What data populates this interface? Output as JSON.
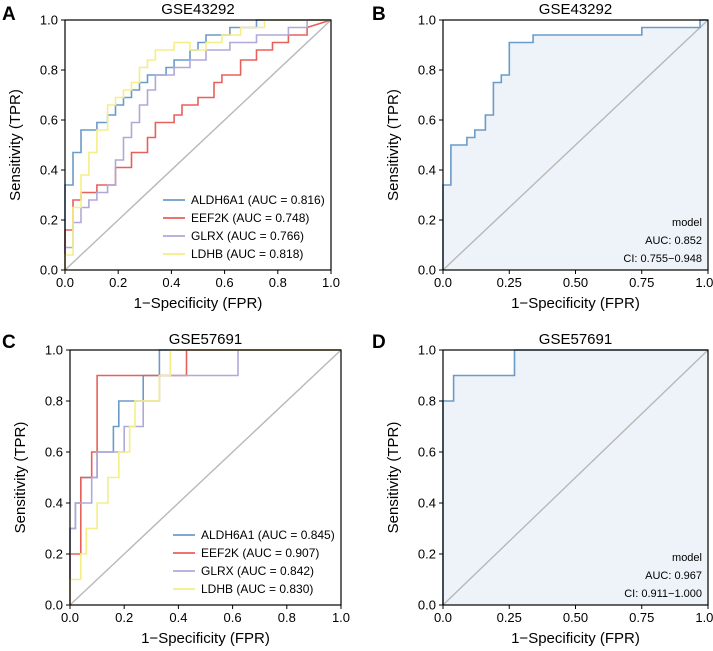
{
  "colors": {
    "ALDH6A1": "#6b9bc8",
    "EEF2K": "#e8605a",
    "GLRX": "#b0a8d8",
    "LDHB": "#f5ee86",
    "model_line": "#6b9bc8",
    "model_fill": "#eef3f9",
    "diagonal": "#b8b8b8"
  },
  "chart_data": [
    {
      "panel_label": "A",
      "type": "line",
      "title": "GSE43292",
      "xlabel": "1−Specificity (FPR)",
      "ylabel": "Sensitivity (TPR)",
      "xlim": [
        0,
        1
      ],
      "ylim": [
        0,
        1
      ],
      "xticks": [
        "0.0",
        "0.2",
        "0.4",
        "0.6",
        "0.8",
        "1.0"
      ],
      "yticks": [
        "0.0",
        "0.2",
        "0.4",
        "0.6",
        "0.8",
        "1.0"
      ],
      "legend_position": "bottom-right",
      "series": [
        {
          "name": "ALDH6A1",
          "label": "ALDH6A1 (AUC = 0.816)",
          "x": [
            0,
            0,
            0.03,
            0.03,
            0.06,
            0.06,
            0.12,
            0.12,
            0.16,
            0.16,
            0.19,
            0.19,
            0.22,
            0.22,
            0.25,
            0.25,
            0.28,
            0.28,
            0.31,
            0.31,
            0.38,
            0.38,
            0.41,
            0.41,
            0.47,
            0.47,
            0.5,
            0.5,
            0.53,
            0.53,
            0.62,
            0.62,
            0.72,
            0.72,
            0.81,
            0.81,
            1.0
          ],
          "y": [
            0,
            0.34,
            0.34,
            0.47,
            0.47,
            0.56,
            0.56,
            0.59,
            0.59,
            0.62,
            0.62,
            0.66,
            0.66,
            0.69,
            0.69,
            0.72,
            0.72,
            0.75,
            0.75,
            0.78,
            0.78,
            0.81,
            0.81,
            0.84,
            0.84,
            0.88,
            0.88,
            0.91,
            0.91,
            0.94,
            0.94,
            0.97,
            0.97,
            1.0,
            1.0,
            1.0,
            1.0
          ]
        },
        {
          "name": "EEF2K",
          "label": "EEF2K (AUC = 0.748)",
          "x": [
            0,
            0,
            0.03,
            0.03,
            0.06,
            0.06,
            0.12,
            0.12,
            0.19,
            0.19,
            0.25,
            0.25,
            0.31,
            0.31,
            0.34,
            0.34,
            0.41,
            0.41,
            0.44,
            0.44,
            0.5,
            0.5,
            0.56,
            0.56,
            0.59,
            0.59,
            0.66,
            0.66,
            0.72,
            0.72,
            0.78,
            0.78,
            0.84,
            0.84,
            0.91,
            0.91,
            1.0
          ],
          "y": [
            0,
            0.16,
            0.16,
            0.28,
            0.28,
            0.31,
            0.31,
            0.34,
            0.34,
            0.41,
            0.41,
            0.47,
            0.47,
            0.53,
            0.53,
            0.59,
            0.59,
            0.62,
            0.62,
            0.66,
            0.66,
            0.69,
            0.69,
            0.75,
            0.75,
            0.78,
            0.78,
            0.84,
            0.84,
            0.88,
            0.88,
            0.91,
            0.91,
            0.94,
            0.94,
            0.97,
            1.0
          ]
        },
        {
          "name": "GLRX",
          "label": "GLRX (AUC = 0.766)",
          "x": [
            0,
            0,
            0.03,
            0.03,
            0.06,
            0.06,
            0.09,
            0.09,
            0.12,
            0.12,
            0.16,
            0.16,
            0.19,
            0.19,
            0.22,
            0.22,
            0.25,
            0.25,
            0.28,
            0.28,
            0.31,
            0.31,
            0.34,
            0.34,
            0.41,
            0.41,
            0.47,
            0.47,
            0.53,
            0.53,
            0.62,
            0.62,
            0.72,
            0.72,
            0.84,
            0.84,
            0.91,
            0.91,
            1.0
          ],
          "y": [
            0,
            0.09,
            0.09,
            0.19,
            0.19,
            0.25,
            0.25,
            0.28,
            0.28,
            0.31,
            0.31,
            0.34,
            0.34,
            0.44,
            0.44,
            0.53,
            0.53,
            0.59,
            0.59,
            0.66,
            0.66,
            0.72,
            0.72,
            0.78,
            0.78,
            0.81,
            0.81,
            0.84,
            0.84,
            0.88,
            0.88,
            0.91,
            0.91,
            0.94,
            0.94,
            0.97,
            0.97,
            1.0,
            1.0
          ]
        },
        {
          "name": "LDHB",
          "label": "LDHB (AUC = 0.818)",
          "x": [
            0,
            0,
            0.03,
            0.03,
            0.06,
            0.06,
            0.09,
            0.09,
            0.12,
            0.12,
            0.16,
            0.16,
            0.19,
            0.19,
            0.22,
            0.22,
            0.25,
            0.25,
            0.28,
            0.28,
            0.31,
            0.31,
            0.34,
            0.34,
            0.41,
            0.41,
            0.47,
            0.47,
            0.53,
            0.53,
            0.59,
            0.59,
            0.66,
            0.66,
            0.75,
            0.75,
            0.84,
            0.84,
            1.0
          ],
          "y": [
            0,
            0.06,
            0.06,
            0.25,
            0.25,
            0.38,
            0.38,
            0.47,
            0.47,
            0.56,
            0.56,
            0.66,
            0.66,
            0.69,
            0.69,
            0.72,
            0.72,
            0.75,
            0.75,
            0.81,
            0.81,
            0.84,
            0.84,
            0.88,
            0.88,
            0.91,
            0.91,
            0.88,
            0.88,
            0.91,
            0.91,
            0.94,
            0.94,
            0.97,
            0.97,
            1.0,
            1.0,
            1.0,
            1.0
          ]
        }
      ]
    },
    {
      "panel_label": "B",
      "type": "area",
      "title": "GSE43292",
      "xlabel": "1−Specificity (FPR)",
      "ylabel": "Sensitivity (TPR)",
      "xlim": [
        0,
        1
      ],
      "ylim": [
        0,
        1
      ],
      "xticks": [
        "0.0",
        "0.25",
        "0.50",
        "0.75",
        "1.00"
      ],
      "yticks": [
        "0.0",
        "0.2",
        "0.4",
        "0.6",
        "0.8",
        "1.0"
      ],
      "annotation": {
        "model": "model",
        "auc": "AUC: 0.852",
        "ci": "CI: 0.755−0.948"
      },
      "series": [
        {
          "name": "model",
          "x": [
            0,
            0,
            0.03,
            0.03,
            0.09,
            0.09,
            0.12,
            0.12,
            0.16,
            0.16,
            0.19,
            0.19,
            0.22,
            0.22,
            0.25,
            0.25,
            0.34,
            0.34,
            0.75,
            0.75,
            0.97,
            0.97,
            1.0
          ],
          "y": [
            0,
            0.34,
            0.34,
            0.5,
            0.5,
            0.53,
            0.53,
            0.56,
            0.56,
            0.62,
            0.62,
            0.75,
            0.75,
            0.78,
            0.78,
            0.91,
            0.91,
            0.94,
            0.94,
            0.97,
            0.97,
            1.0,
            1.0
          ]
        }
      ]
    },
    {
      "panel_label": "C",
      "type": "line",
      "title": "GSE57691",
      "xlabel": "1−Specificity (FPR)",
      "ylabel": "Sensitivity (TPR)",
      "xlim": [
        0,
        1
      ],
      "ylim": [
        0,
        1
      ],
      "xticks": [
        "0.0",
        "0.2",
        "0.4",
        "0.6",
        "0.8",
        "1.0"
      ],
      "yticks": [
        "0.0",
        "0.2",
        "0.4",
        "0.6",
        "0.8",
        "1.0"
      ],
      "legend_position": "bottom-right",
      "series": [
        {
          "name": "ALDH6A1",
          "label": "ALDH6A1 (AUC = 0.845)",
          "x": [
            0,
            0,
            0.02,
            0.02,
            0.04,
            0.04,
            0.1,
            0.1,
            0.16,
            0.16,
            0.18,
            0.18,
            0.27,
            0.27,
            0.33,
            0.33,
            0.37,
            0.37,
            0.47,
            0.47,
            1.0
          ],
          "y": [
            0,
            0.3,
            0.3,
            0.4,
            0.4,
            0.5,
            0.5,
            0.6,
            0.6,
            0.7,
            0.7,
            0.8,
            0.8,
            0.9,
            0.9,
            1.0,
            1.0,
            1.0,
            1.0,
            1.0,
            1.0
          ]
        },
        {
          "name": "EEF2K",
          "label": "EEF2K (AUC = 0.907)",
          "x": [
            0,
            0,
            0.04,
            0.04,
            0.08,
            0.08,
            0.1,
            0.1,
            0.33,
            0.33,
            0.43,
            0.43,
            1.0
          ],
          "y": [
            0,
            0.2,
            0.2,
            0.5,
            0.5,
            0.6,
            0.6,
            0.9,
            0.9,
            0.9,
            0.9,
            1.0,
            1.0
          ]
        },
        {
          "name": "GLRX",
          "label": "GLRX (AUC = 0.842)",
          "x": [
            0,
            0,
            0.02,
            0.02,
            0.08,
            0.08,
            0.1,
            0.1,
            0.12,
            0.12,
            0.2,
            0.2,
            0.24,
            0.24,
            0.27,
            0.27,
            0.33,
            0.33,
            0.43,
            0.43,
            0.55,
            0.55,
            0.62,
            0.62,
            1.0
          ],
          "y": [
            0,
            0.3,
            0.3,
            0.4,
            0.4,
            0.5,
            0.5,
            0.6,
            0.6,
            0.6,
            0.6,
            0.7,
            0.7,
            0.7,
            0.7,
            0.8,
            0.8,
            0.9,
            0.9,
            0.9,
            0.9,
            0.9,
            0.9,
            1.0,
            1.0
          ]
        },
        {
          "name": "LDHB",
          "label": "LDHB (AUC = 0.830)",
          "x": [
            0,
            0,
            0.04,
            0.04,
            0.06,
            0.06,
            0.1,
            0.1,
            0.14,
            0.14,
            0.18,
            0.18,
            0.22,
            0.22,
            0.24,
            0.24,
            0.33,
            0.33,
            0.37,
            0.37,
            0.43,
            0.43,
            1.0
          ],
          "y": [
            0,
            0.1,
            0.1,
            0.2,
            0.2,
            0.3,
            0.3,
            0.4,
            0.4,
            0.5,
            0.5,
            0.6,
            0.6,
            0.7,
            0.7,
            0.8,
            0.8,
            0.9,
            0.9,
            1.0,
            1.0,
            1.0,
            1.0
          ]
        }
      ]
    },
    {
      "panel_label": "D",
      "type": "area",
      "title": "GSE57691",
      "xlabel": "1−Specificity (FPR)",
      "ylabel": "Sensitivity (TPR)",
      "xlim": [
        0,
        1
      ],
      "ylim": [
        0,
        1
      ],
      "xticks": [
        "0.0",
        "0.25",
        "0.50",
        "0.75",
        "1.00"
      ],
      "yticks": [
        "0.0",
        "0.2",
        "0.4",
        "0.6",
        "0.8",
        "1.0"
      ],
      "annotation": {
        "model": "model",
        "auc": "AUC: 0.967",
        "ci": "CI: 0.911−1.000"
      },
      "series": [
        {
          "name": "model",
          "x": [
            0,
            0,
            0.04,
            0.04,
            0.27,
            0.27,
            1.0
          ],
          "y": [
            0,
            0.8,
            0.8,
            0.9,
            0.9,
            1.0,
            1.0
          ]
        }
      ]
    }
  ]
}
